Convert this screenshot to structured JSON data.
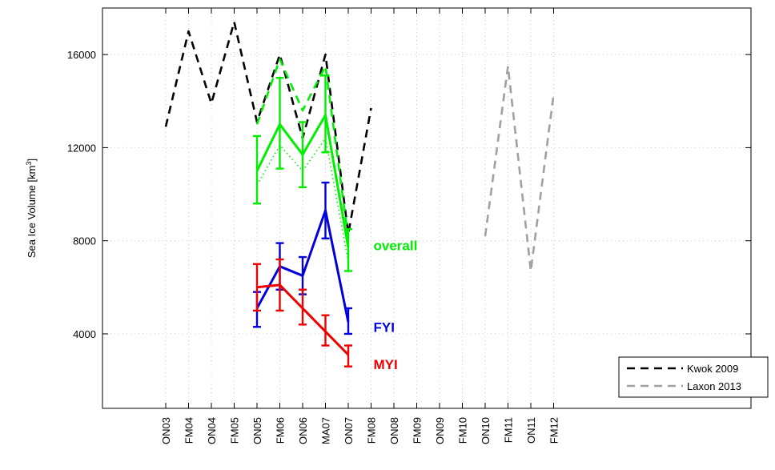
{
  "chart_data": {
    "type": "line",
    "ylabel": "Sea Ice Volume [km",
    "ylabel_sup": "3",
    "ylabel_end": "]",
    "ylim": [
      800,
      18000
    ],
    "yticks": [
      4000,
      8000,
      12000,
      16000
    ],
    "grid": true,
    "legend_position": "bottom-right",
    "x_periods": [
      "ON03",
      "FM04",
      "ON04",
      "FM05",
      "ON05",
      "FM06",
      "ON06",
      "MA07",
      "ON07",
      "FM08",
      "ON08",
      "FM09",
      "ON09",
      "FM10",
      "ON10",
      "FM11",
      "ON11",
      "FM12"
    ],
    "series": [
      {
        "name": "Kwok 2009",
        "legend": true,
        "style": "dashed",
        "color": "#000000",
        "x": [
          "ON03",
          "FM04",
          "ON04",
          "FM05",
          "ON05",
          "FM06",
          "ON06",
          "MA07",
          "ON07",
          "FM08"
        ],
        "y": [
          12900,
          17000,
          13900,
          17400,
          13100,
          16000,
          12400,
          16000,
          8300,
          13700
        ]
      },
      {
        "name": "Laxon 2013",
        "legend": true,
        "style": "dashed",
        "color": "#a0a0a0",
        "x": [
          "ON10",
          "FM11",
          "ON11",
          "FM12"
        ],
        "y": [
          8200,
          15500,
          6700,
          14300
        ]
      },
      {
        "name": "overall",
        "legend": false,
        "style": "solid",
        "color": "#00ee00",
        "x": [
          "ON05",
          "FM06",
          "ON06",
          "MA07",
          "ON07"
        ],
        "y": [
          11000,
          13000,
          11700,
          13400,
          7700
        ],
        "err_low": [
          9600,
          11100,
          10300,
          11800,
          6700
        ],
        "err_high": [
          12500,
          15000,
          13100,
          15100,
          8500
        ]
      },
      {
        "name": "overall-dashed",
        "legend": false,
        "style": "dashed",
        "color": "#00ee00",
        "x": [
          "ON05",
          "FM06",
          "ON06",
          "MA07",
          "ON07"
        ],
        "y": [
          13000,
          15800,
          13600,
          15500,
          8100
        ]
      },
      {
        "name": "overall-dotted",
        "legend": false,
        "style": "dotted",
        "color": "#00ee00",
        "x": [
          "ON05",
          "FM06",
          "ON06",
          "MA07",
          "ON07"
        ],
        "y": [
          10400,
          12100,
          11000,
          12400,
          7100
        ]
      },
      {
        "name": "FYI",
        "legend": false,
        "style": "solid",
        "color": "#0000dd",
        "x": [
          "ON05",
          "FM06",
          "ON06",
          "MA07",
          "ON07"
        ],
        "y": [
          5100,
          6900,
          6500,
          9300,
          4500
        ],
        "err_low": [
          4300,
          5900,
          5700,
          8100,
          4000
        ],
        "err_high": [
          5800,
          7900,
          7300,
          10500,
          5100
        ]
      },
      {
        "name": "MYI",
        "legend": false,
        "style": "solid",
        "color": "#ee0000",
        "x": [
          "ON05",
          "FM06",
          "ON06",
          "MA07",
          "ON07"
        ],
        "y": [
          6000,
          6100,
          5100,
          4100,
          3100
        ],
        "err_low": [
          5000,
          5000,
          4400,
          3500,
          2600
        ],
        "err_high": [
          7000,
          7200,
          5900,
          4800,
          3500
        ]
      }
    ],
    "annotations": [
      {
        "text": "overall",
        "color": "#00ee00",
        "x": "FM08",
        "y": 7800
      },
      {
        "text": "FYI",
        "color": "#0000dd",
        "x": "FM08",
        "y": 4300
      },
      {
        "text": "MYI",
        "color": "#ee0000",
        "x": "FM08",
        "y": 2700
      }
    ]
  }
}
